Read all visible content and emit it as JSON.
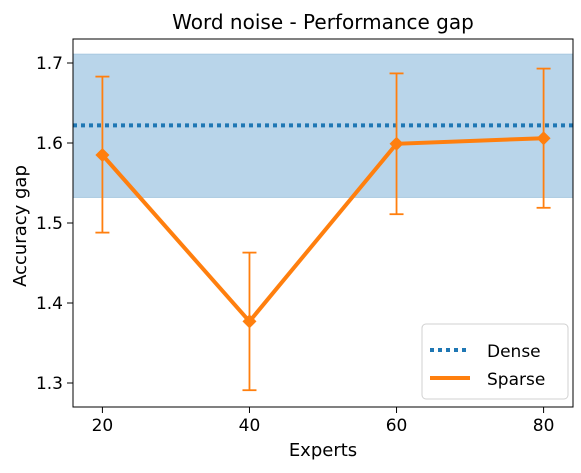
{
  "chart_data": {
    "type": "line",
    "title": "Word noise - Performance gap",
    "xlabel": "Experts",
    "ylabel": "Accuracy gap",
    "x": [
      20,
      40,
      60,
      80
    ],
    "xlim": [
      16,
      84
    ],
    "ylim": [
      1.27,
      1.73
    ],
    "x_ticks": [
      20,
      40,
      60,
      80
    ],
    "y_ticks": [
      1.3,
      1.4,
      1.5,
      1.6,
      1.7
    ],
    "x_tick_labels": [
      "20",
      "40",
      "60",
      "80"
    ],
    "y_tick_labels": [
      "1.3",
      "1.4",
      "1.5",
      "1.6",
      "1.7"
    ],
    "grid": false,
    "legend_position": "bottom-right",
    "dense": {
      "name": "Dense",
      "value": 1.622,
      "band": [
        1.532,
        1.711
      ],
      "style": "dotted",
      "color": "#1f77b4",
      "band_color": "#b9d5ea"
    },
    "series": [
      {
        "name": "Sparse",
        "values": [
          1.585,
          1.377,
          1.599,
          1.606
        ],
        "error_low": [
          1.488,
          1.291,
          1.511,
          1.519
        ],
        "error_high": [
          1.683,
          1.463,
          1.687,
          1.693
        ],
        "marker": "diamond",
        "color": "#ff7f0e"
      }
    ]
  }
}
